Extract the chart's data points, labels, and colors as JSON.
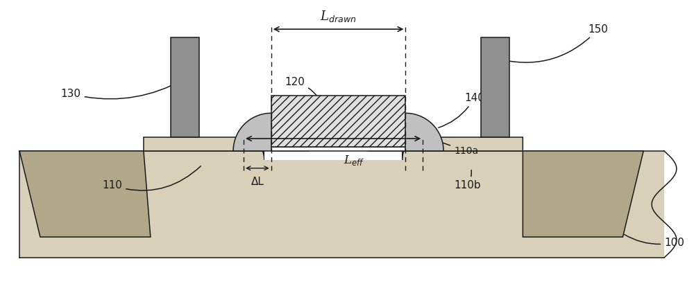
{
  "bg_color": "#ffffff",
  "line_color": "#1a1a1a",
  "substrate_color": "#d8d0b8",
  "substrate_stipple": "#c8c0a8",
  "sti_color": "#b0a888",
  "gate_poly_hatch_color": "#d0d0d0",
  "gate_poly_face": "#e0e0e0",
  "spacer_color": "#c0c0c0",
  "contact_color": "#909090",
  "white": "#ffffff",
  "labels": {
    "L_drawn": "L$_{drawn}$",
    "L_eff": "L$_{eff}$",
    "delta_L": "ΔL",
    "ref_100": "100",
    "ref_110": "110",
    "ref_110a": "110a",
    "ref_110b": "110b",
    "ref_120": "120",
    "ref_130": "130",
    "ref_140": "140",
    "ref_150": "150"
  },
  "figsize": [
    10.0,
    4.23
  ],
  "dpi": 100
}
